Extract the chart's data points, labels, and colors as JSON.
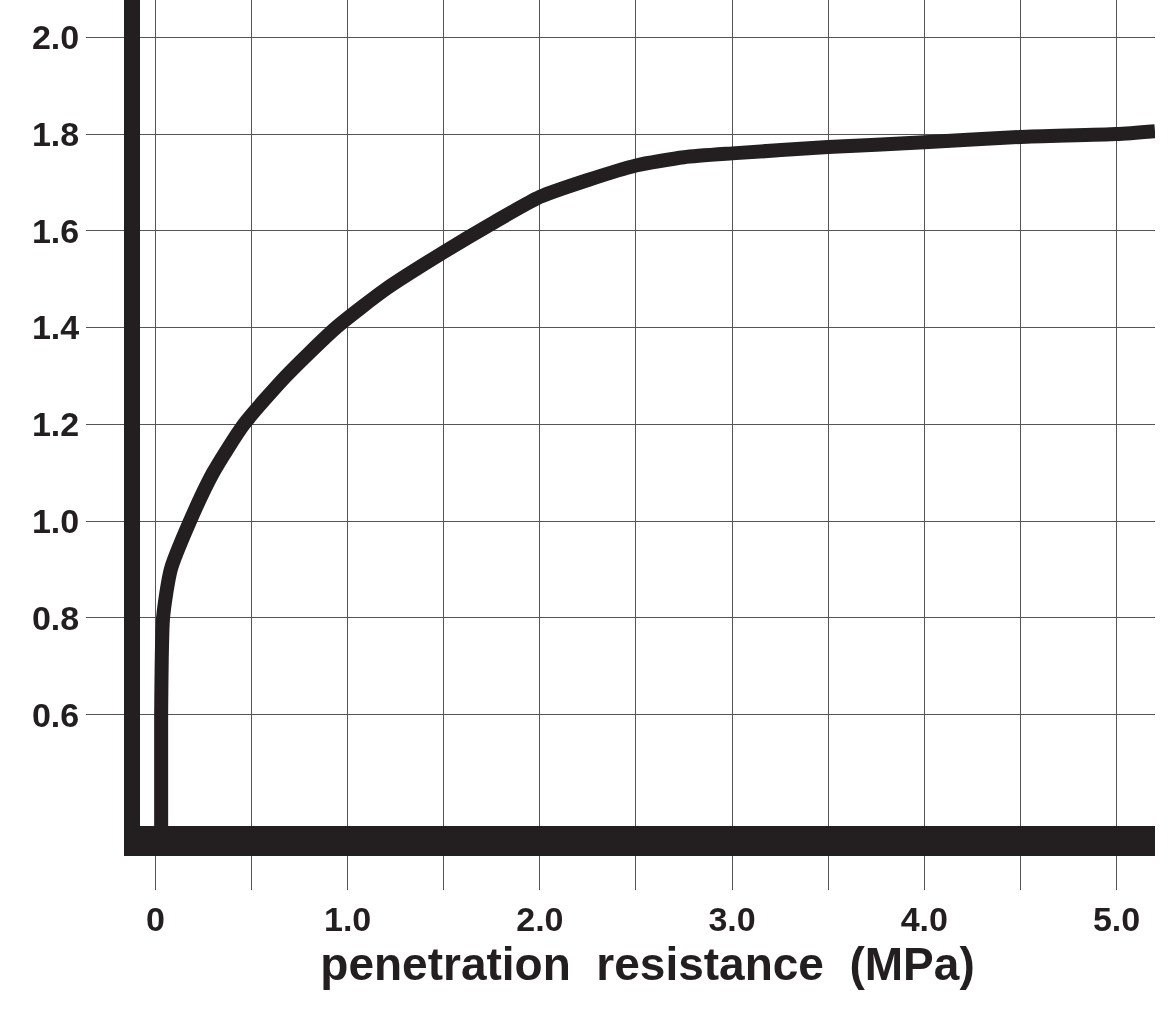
{
  "chart_data": {
    "type": "line",
    "xlabel": "penetration  resistance  (MPa)",
    "x": [
      0.03,
      0.03,
      0.04,
      0.08,
      0.18,
      0.3,
      0.46,
      0.68,
      0.94,
      1.2,
      1.5,
      1.75,
      2.0,
      2.25,
      2.5,
      2.75,
      3.0,
      3.5,
      4.0,
      4.5,
      5.0,
      5.2
    ],
    "series": [
      {
        "color": "#231f20",
        "values": [
          0.37,
          0.6,
          0.8,
          0.9,
          1.0,
          1.1,
          1.2,
          1.3,
          1.4,
          1.48,
          1.556,
          1.615,
          1.67,
          1.705,
          1.735,
          1.752,
          1.76,
          1.773,
          1.783,
          1.794,
          1.8,
          1.806
        ]
      }
    ],
    "xlim": [
      -0.08,
      5.2
    ],
    "ylim": [
      0.37,
      2.077
    ],
    "xticks": [
      {
        "value": 0,
        "label": "0"
      },
      {
        "value": 0.5,
        "label": null
      },
      {
        "value": 1.0,
        "label": "1.0"
      },
      {
        "value": 1.5,
        "label": null
      },
      {
        "value": 2.0,
        "label": "2.0"
      },
      {
        "value": 2.5,
        "label": null
      },
      {
        "value": 3.0,
        "label": "3.0"
      },
      {
        "value": 3.5,
        "label": null
      },
      {
        "value": 4.0,
        "label": "4.0"
      },
      {
        "value": 4.5,
        "label": null
      },
      {
        "value": 5.0,
        "label": "5.0"
      }
    ],
    "yticks": [
      {
        "value": 0.6,
        "label": "0.6"
      },
      {
        "value": 0.8,
        "label": "0.8"
      },
      {
        "value": 1.0,
        "label": "1.0"
      },
      {
        "value": 1.2,
        "label": "1.2"
      },
      {
        "value": 1.4,
        "label": "1.4"
      },
      {
        "value": 1.6,
        "label": "1.6"
      },
      {
        "value": 1.8,
        "label": "1.8"
      },
      {
        "value": 2.0,
        "label": "2.0"
      }
    ],
    "grid": true,
    "marker": "none",
    "line_style": "solid"
  }
}
